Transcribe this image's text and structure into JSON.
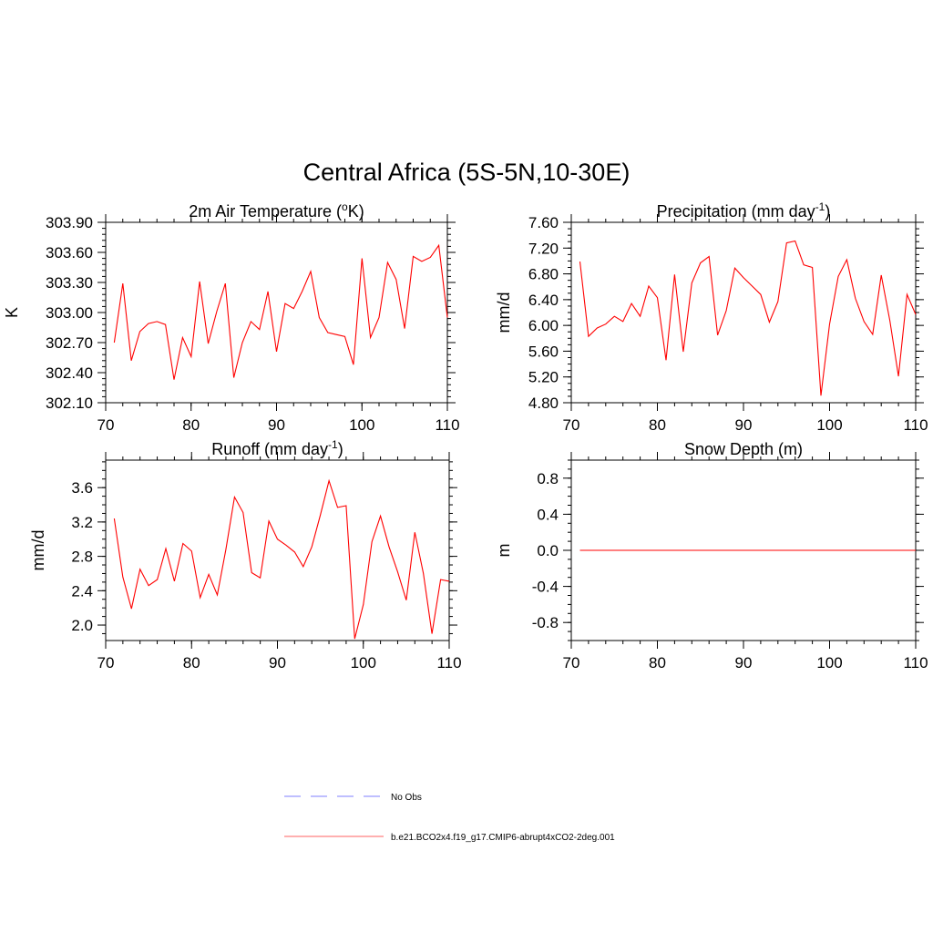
{
  "figure": {
    "title": "Central Africa (5S-5N,10-30E)"
  },
  "legend": {
    "placement": "bottom-center",
    "entries": [
      {
        "label": "No Obs",
        "color": "#9999ff",
        "dash": true
      },
      {
        "label": "b.e21.BCO2x4.f19_g17.CMIP6-abrupt4xCO2-2deg.001",
        "color": "#ff8080",
        "dash": false
      }
    ]
  },
  "chart_data": [
    {
      "type": "line",
      "title": "2m Air Temperature (",
      "title_sup": "o",
      "title_tail": "K)",
      "ylabel": "K",
      "xlim": [
        70,
        110
      ],
      "ylim": [
        302.1,
        303.9
      ],
      "xticks": [
        70,
        80,
        90,
        100,
        110
      ],
      "yticks": [
        302.1,
        302.4,
        302.7,
        303.0,
        303.3,
        303.6,
        303.9
      ],
      "ytick_labels": [
        "302.10",
        "302.40",
        "302.70",
        "303.00",
        "303.30",
        "303.60",
        "303.90"
      ],
      "x_minor_step": 2,
      "y_minor_step": 0.06,
      "color": "#ff0000",
      "series": [
        {
          "x": [
            71,
            72,
            73,
            74,
            75,
            76,
            77,
            78,
            79,
            80,
            81,
            82,
            83,
            84,
            85,
            86,
            87,
            88,
            89,
            90,
            91,
            92,
            93,
            94,
            95,
            96,
            97,
            98,
            99,
            100,
            101,
            102,
            103,
            104,
            105,
            106,
            107,
            108,
            109,
            110
          ],
          "values": [
            302.7,
            303.29,
            302.52,
            302.81,
            302.89,
            302.91,
            302.88,
            302.33,
            302.75,
            302.56,
            303.31,
            302.69,
            303.01,
            303.29,
            302.35,
            302.7,
            302.91,
            302.83,
            303.21,
            302.61,
            303.09,
            303.04,
            303.21,
            303.41,
            302.95,
            302.8,
            302.78,
            302.76,
            302.48,
            303.54,
            302.75,
            302.95,
            303.5,
            303.33,
            302.84,
            303.56,
            303.51,
            303.55,
            303.67,
            302.95
          ]
        }
      ]
    },
    {
      "type": "line",
      "title": "Precipitation (mm day",
      "title_sup": "-1",
      "title_tail": ")",
      "ylabel": "mm/d",
      "xlim": [
        70,
        110
      ],
      "ylim": [
        4.8,
        7.6
      ],
      "xticks": [
        70,
        80,
        90,
        100,
        110
      ],
      "yticks": [
        4.8,
        5.2,
        5.6,
        6.0,
        6.4,
        6.8,
        7.2,
        7.6
      ],
      "ytick_labels": [
        "4.80",
        "5.20",
        "5.60",
        "6.00",
        "6.40",
        "6.80",
        "7.20",
        "7.60"
      ],
      "x_minor_step": 2,
      "y_minor_step": 0.1,
      "color": "#ff0000",
      "series": [
        {
          "x": [
            71,
            72,
            73,
            74,
            75,
            76,
            77,
            78,
            79,
            80,
            81,
            82,
            83,
            84,
            85,
            86,
            87,
            88,
            89,
            90,
            91,
            92,
            93,
            94,
            95,
            96,
            97,
            98,
            99,
            100,
            101,
            102,
            103,
            104,
            105,
            106,
            107,
            108,
            109,
            110
          ],
          "values": [
            6.99,
            5.83,
            5.96,
            6.02,
            6.14,
            6.06,
            6.34,
            6.14,
            6.61,
            6.43,
            5.46,
            6.79,
            5.59,
            6.66,
            6.97,
            7.07,
            5.85,
            6.23,
            6.89,
            6.74,
            6.61,
            6.48,
            6.05,
            6.37,
            7.28,
            7.31,
            6.94,
            6.9,
            4.91,
            6.02,
            6.76,
            7.02,
            6.42,
            6.06,
            5.86,
            6.78,
            6.07,
            5.21,
            6.48,
            6.17
          ]
        }
      ]
    },
    {
      "type": "line",
      "title": "Runoff (mm day",
      "title_sup": "-1",
      "title_tail": ")",
      "ylabel": "mm/d",
      "xlim": [
        70,
        110
      ],
      "ylim": [
        1.82,
        3.92
      ],
      "xticks": [
        70,
        80,
        90,
        100,
        110
      ],
      "yticks": [
        2.0,
        2.4,
        2.8,
        3.2,
        3.6
      ],
      "ytick_labels": [
        "2.0",
        "2.4",
        "2.8",
        "3.2",
        "3.6"
      ],
      "x_minor_step": 2,
      "y_minor_step": 0.1,
      "color": "#ff0000",
      "series": [
        {
          "x": [
            71,
            72,
            73,
            74,
            75,
            76,
            77,
            78,
            79,
            80,
            81,
            82,
            83,
            84,
            85,
            86,
            87,
            88,
            89,
            90,
            91,
            92,
            93,
            94,
            95,
            96,
            97,
            98,
            99,
            100,
            101,
            102,
            103,
            104,
            105,
            106,
            107,
            108,
            109,
            110
          ],
          "values": [
            3.24,
            2.56,
            2.19,
            2.65,
            2.46,
            2.53,
            2.89,
            2.51,
            2.95,
            2.86,
            2.32,
            2.59,
            2.35,
            2.88,
            3.49,
            3.31,
            2.61,
            2.55,
            3.21,
            3.0,
            2.93,
            2.85,
            2.68,
            2.91,
            3.28,
            3.68,
            3.37,
            3.39,
            1.84,
            2.24,
            2.97,
            3.27,
            2.91,
            2.62,
            2.29,
            3.08,
            2.6,
            1.9,
            2.53,
            2.51
          ]
        }
      ]
    },
    {
      "type": "line",
      "title": "Snow Depth (m)",
      "title_sup": "",
      "title_tail": "",
      "ylabel": "m",
      "xlim": [
        70,
        110
      ],
      "ylim": [
        -1.0,
        1.0
      ],
      "xticks": [
        70,
        80,
        90,
        100,
        110
      ],
      "yticks": [
        -0.8,
        -0.4,
        0.0,
        0.4,
        0.8
      ],
      "ytick_labels": [
        "-0.8",
        "-0.4",
        "0.0",
        "0.4",
        "0.8"
      ],
      "x_minor_step": 2,
      "y_minor_step": 0.1,
      "color": "#ff0000",
      "series": [
        {
          "x": [
            71,
            72,
            73,
            74,
            75,
            76,
            77,
            78,
            79,
            80,
            81,
            82,
            83,
            84,
            85,
            86,
            87,
            88,
            89,
            90,
            91,
            92,
            93,
            94,
            95,
            96,
            97,
            98,
            99,
            100,
            101,
            102,
            103,
            104,
            105,
            106,
            107,
            108,
            109,
            110
          ],
          "values": [
            0,
            0,
            0,
            0,
            0,
            0,
            0,
            0,
            0,
            0,
            0,
            0,
            0,
            0,
            0,
            0,
            0,
            0,
            0,
            0,
            0,
            0,
            0,
            0,
            0,
            0,
            0,
            0,
            0,
            0,
            0,
            0,
            0,
            0,
            0,
            0,
            0,
            0,
            0,
            0
          ]
        }
      ]
    }
  ]
}
